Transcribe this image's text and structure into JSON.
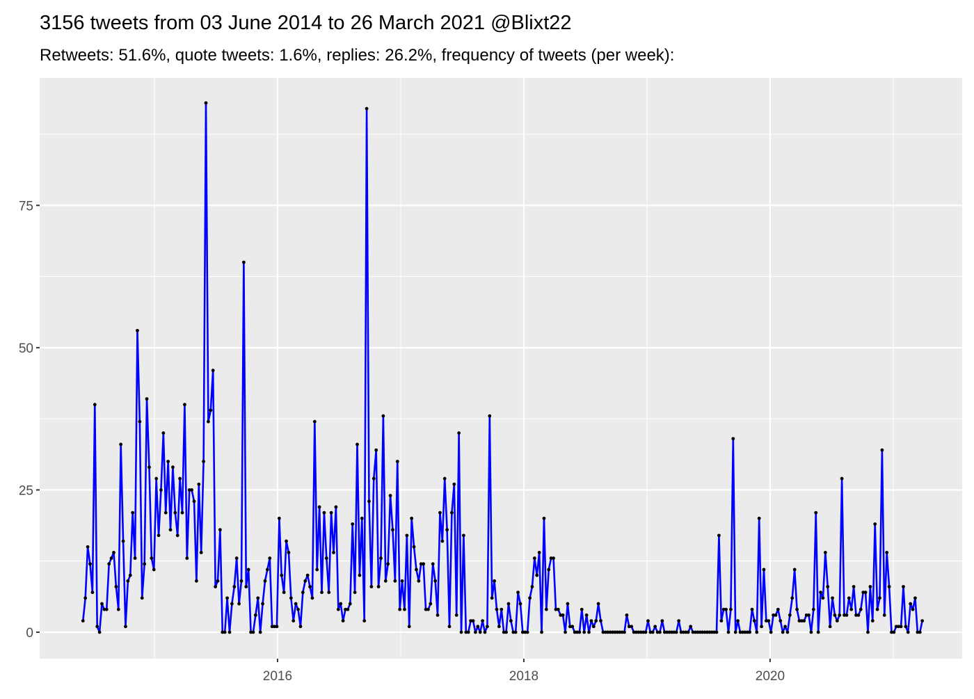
{
  "chart_data": {
    "type": "line",
    "title": "3156 tweets from 03 June 2014 to 26 March 2021 @Blixt22",
    "subtitle": "Retweets: 51.6%, quote tweets: 1.6%, replies: 26.2%, frequency of tweets (per week):",
    "color": "#0000ff",
    "point_color": "#000000",
    "grid": true,
    "xlim": [
      2014.068,
      2021.56
    ],
    "ylim": [
      -4.65,
      97.4
    ],
    "xticks": [
      2016,
      2018,
      2020
    ],
    "yticks": [
      0,
      25,
      50,
      75
    ],
    "x": [
      2014.42,
      2014.4392,
      2014.4584,
      2014.4776,
      2014.4968,
      2014.516,
      2014.5352,
      2014.5544,
      2014.5736,
      2014.5928,
      2014.612,
      2014.6312,
      2014.6504,
      2014.6696,
      2014.6888,
      2014.708,
      2014.7272,
      2014.7464,
      2014.7656,
      2014.7848,
      2014.804,
      2014.8232,
      2014.8424,
      2014.8616,
      2014.8808,
      2014.9,
      2014.9192,
      2014.9384,
      2014.9576,
      2014.9768,
      2014.996,
      2015.0152,
      2015.0344,
      2015.0536,
      2015.0728,
      2015.092,
      2015.1112,
      2015.1304,
      2015.1496,
      2015.1688,
      2015.188,
      2015.2072,
      2015.2264,
      2015.2456,
      2015.2648,
      2015.284,
      2015.3032,
      2015.3224,
      2015.3416,
      2015.3608,
      2015.38,
      2015.3992,
      2015.4184,
      2015.4376,
      2015.4568,
      2015.476,
      2015.4952,
      2015.5144,
      2015.5336,
      2015.5528,
      2015.572,
      2015.5912,
      2015.6104,
      2015.6296,
      2015.6488,
      2015.668,
      2015.6872,
      2015.7064,
      2015.7256,
      2015.7448,
      2015.764,
      2015.7832,
      2015.8024,
      2015.8216,
      2015.8408,
      2015.86,
      2015.8792,
      2015.8984,
      2015.9176,
      2015.9368,
      2015.956,
      2015.9752,
      2015.9944,
      2016.0136,
      2016.0328,
      2016.052,
      2016.0712,
      2016.0904,
      2016.1096,
      2016.1288,
      2016.148,
      2016.1672,
      2016.1864,
      2016.2056,
      2016.2248,
      2016.244,
      2016.2632,
      2016.2824,
      2016.3016,
      2016.3208,
      2016.34,
      2016.3592,
      2016.3784,
      2016.3976,
      2016.4168,
      2016.436,
      2016.4552,
      2016.4744,
      2016.4936,
      2016.5128,
      2016.532,
      2016.5512,
      2016.5704,
      2016.5896,
      2016.6088,
      2016.628,
      2016.6472,
      2016.6664,
      2016.6856,
      2016.7048,
      2016.724,
      2016.7432,
      2016.7624,
      2016.7816,
      2016.8008,
      2016.82,
      2016.8392,
      2016.8584,
      2016.8776,
      2016.8968,
      2016.916,
      2016.9352,
      2016.9544,
      2016.9736,
      2016.9928,
      2017.012,
      2017.0312,
      2017.0504,
      2017.0696,
      2017.0888,
      2017.108,
      2017.1272,
      2017.1464,
      2017.1656,
      2017.1848,
      2017.204,
      2017.2232,
      2017.2424,
      2017.2616,
      2017.2808,
      2017.3,
      2017.3192,
      2017.3384,
      2017.3576,
      2017.3768,
      2017.396,
      2017.4152,
      2017.4344,
      2017.4536,
      2017.4728,
      2017.492,
      2017.5112,
      2017.5304,
      2017.5496,
      2017.5688,
      2017.588,
      2017.6072,
      2017.6264,
      2017.6456,
      2017.6648,
      2017.684,
      2017.7032,
      2017.7224,
      2017.7416,
      2017.7608,
      2017.78,
      2017.7992,
      2017.8184,
      2017.8376,
      2017.8568,
      2017.876,
      2017.8952,
      2017.9144,
      2017.9336,
      2017.9528,
      2017.972,
      2017.9912,
      2018.0104,
      2018.0296,
      2018.0488,
      2018.068,
      2018.0872,
      2018.1064,
      2018.1256,
      2018.1448,
      2018.164,
      2018.1832,
      2018.2024,
      2018.2216,
      2018.2408,
      2018.26,
      2018.2792,
      2018.2984,
      2018.3176,
      2018.3368,
      2018.356,
      2018.3752,
      2018.3944,
      2018.4136,
      2018.4328,
      2018.452,
      2018.4712,
      2018.4904,
      2018.5096,
      2018.5288,
      2018.548,
      2018.5672,
      2018.5864,
      2018.6056,
      2018.6248,
      2018.644,
      2018.6632,
      2018.6824,
      2018.7016,
      2018.7208,
      2018.74,
      2018.7592,
      2018.7784,
      2018.7976,
      2018.8168,
      2018.836,
      2018.8552,
      2018.8744,
      2018.8936,
      2018.9128,
      2018.932,
      2018.9512,
      2018.9704,
      2018.9896,
      2019.0088,
      2019.028,
      2019.0472,
      2019.0664,
      2019.0856,
      2019.1048,
      2019.124,
      2019.1432,
      2019.1624,
      2019.1816,
      2019.2008,
      2019.22,
      2019.2392,
      2019.2584,
      2019.2776,
      2019.2968,
      2019.316,
      2019.3352,
      2019.3544,
      2019.3736,
      2019.3928,
      2019.412,
      2019.4312,
      2019.4504,
      2019.4696,
      2019.4888,
      2019.508,
      2019.5272,
      2019.5464,
      2019.5656,
      2019.5848,
      2019.604,
      2019.6232,
      2019.6424,
      2019.6616,
      2019.6808,
      2019.7,
      2019.7192,
      2019.7384,
      2019.7576,
      2019.7768,
      2019.796,
      2019.8152,
      2019.8344,
      2019.8536,
      2019.8728,
      2019.892,
      2019.9112,
      2019.9304,
      2019.9496,
      2019.9688,
      2019.988,
      2020.0072,
      2020.0264,
      2020.0456,
      2020.0648,
      2020.084,
      2020.1032,
      2020.1224,
      2020.1416,
      2020.1608,
      2020.18,
      2020.1992,
      2020.2184,
      2020.2376,
      2020.2568,
      2020.276,
      2020.2952,
      2020.3144,
      2020.3336,
      2020.3528,
      2020.372,
      2020.3912,
      2020.4104,
      2020.4296,
      2020.4488,
      2020.468,
      2020.4872,
      2020.5064,
      2020.5256,
      2020.5448,
      2020.564,
      2020.5832,
      2020.6024,
      2020.6216,
      2020.6408,
      2020.66,
      2020.6792,
      2020.6984,
      2020.7176,
      2020.7368,
      2020.756,
      2020.7752,
      2020.7944,
      2020.8136,
      2020.8328,
      2020.852,
      2020.8712,
      2020.8904,
      2020.9096,
      2020.9288,
      2020.948,
      2020.9672,
      2020.9864,
      2021.0056,
      2021.0248,
      2021.044,
      2021.0632,
      2021.0824,
      2021.1016,
      2021.1208,
      2021.14,
      2021.1592,
      2021.1784,
      2021.1976,
      2021.2168,
      2021.236
    ],
    "values": [
      2,
      6,
      15,
      12,
      7,
      40,
      1,
      0,
      5,
      4,
      4,
      12,
      13,
      14,
      8,
      4,
      33,
      16,
      1,
      9,
      10,
      21,
      13,
      53,
      37,
      6,
      12,
      41,
      29,
      13,
      11,
      27,
      17,
      25,
      35,
      21,
      30,
      18,
      29,
      21,
      17,
      27,
      21,
      40,
      13,
      25,
      25,
      23,
      9,
      26,
      14,
      30,
      93,
      37,
      39,
      46,
      8,
      9,
      18,
      0,
      0,
      6,
      0,
      5,
      8,
      13,
      5,
      9,
      65,
      8,
      11,
      0,
      0,
      3,
      6,
      0,
      5,
      9,
      11,
      13,
      1,
      1,
      1,
      20,
      10,
      7,
      16,
      14,
      6,
      2,
      5,
      4,
      1,
      7,
      9,
      10,
      8,
      6,
      37,
      11,
      22,
      7,
      21,
      13,
      7,
      21,
      14,
      22,
      4,
      5,
      2,
      4,
      4,
      5,
      19,
      7,
      33,
      10,
      20,
      2,
      92,
      23,
      8,
      27,
      32,
      8,
      13,
      38,
      9,
      12,
      24,
      18,
      9,
      30,
      4,
      9,
      4,
      17,
      1,
      20,
      15,
      11,
      9,
      12,
      12,
      4,
      4,
      5,
      12,
      9,
      3,
      21,
      16,
      27,
      18,
      1,
      21,
      26,
      3,
      35,
      0,
      17,
      0,
      0,
      2,
      2,
      0,
      1,
      0,
      2,
      0,
      1,
      38,
      6,
      9,
      4,
      1,
      4,
      0,
      0,
      5,
      2,
      0,
      0,
      7,
      5,
      0,
      0,
      0,
      6,
      8,
      13,
      10,
      14,
      0,
      20,
      4,
      11,
      13,
      13,
      4,
      4,
      3,
      3,
      0,
      5,
      1,
      1,
      0,
      0,
      0,
      4,
      0,
      3,
      0,
      2,
      1,
      2,
      5,
      2,
      0,
      0,
      0,
      0,
      0,
      0,
      0,
      0,
      0,
      0,
      3,
      1,
      1,
      0,
      0,
      0,
      0,
      0,
      0,
      2,
      0,
      0,
      1,
      0,
      0,
      2,
      0,
      0,
      0,
      0,
      0,
      0,
      2,
      0,
      0,
      0,
      0,
      1,
      0,
      0,
      0,
      0,
      0,
      0,
      0,
      0,
      0,
      0,
      0,
      17,
      2,
      4,
      4,
      0,
      4,
      34,
      0,
      2,
      0,
      0,
      0,
      0,
      0,
      4,
      2,
      0,
      20,
      1,
      11,
      2,
      2,
      0,
      3,
      3,
      4,
      2,
      0,
      1,
      0,
      3,
      6,
      11,
      4,
      2,
      2,
      2,
      3,
      3,
      0,
      4,
      21,
      0,
      7,
      6,
      14,
      8,
      1,
      6,
      3,
      2,
      3,
      27,
      3,
      3,
      6,
      4,
      8,
      3,
      3,
      4,
      7,
      7,
      0,
      8,
      2,
      19,
      4,
      6,
      32,
      3,
      14,
      8,
      0,
      0,
      1,
      1,
      1,
      8,
      1,
      0,
      5,
      4,
      6,
      0,
      0,
      2
    ]
  }
}
